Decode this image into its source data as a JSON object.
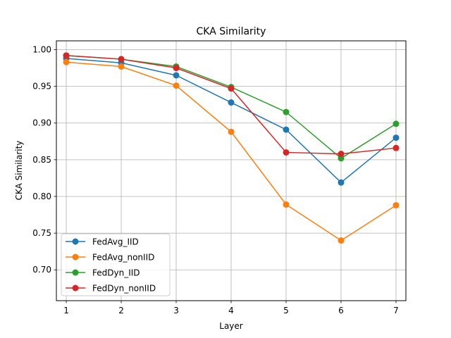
{
  "chart_data": {
    "type": "line",
    "title": "CKA Similarity",
    "xlabel": "Layer",
    "ylabel": "CKA Similarity",
    "x": [
      1,
      2,
      3,
      4,
      5,
      6,
      7
    ],
    "xlim": [
      0.82,
      7.18
    ],
    "ylim": [
      0.658,
      1.012
    ],
    "xticks": [
      "1",
      "2",
      "3",
      "4",
      "5",
      "6",
      "7"
    ],
    "yticks": [
      "0.70",
      "0.75",
      "0.80",
      "0.85",
      "0.90",
      "0.95",
      "1.00"
    ],
    "grid": true,
    "legend_position": "lower-left",
    "series": [
      {
        "name": "FedAvg_IID",
        "color": "#1f77b4",
        "values": [
          0.988,
          0.982,
          0.965,
          0.928,
          0.891,
          0.819,
          0.88
        ]
      },
      {
        "name": "FedAvg_nonIID",
        "color": "#ff7f0e",
        "values": [
          0.983,
          0.977,
          0.951,
          0.888,
          0.789,
          0.74,
          0.788
        ]
      },
      {
        "name": "FedDyn_IID",
        "color": "#2ca02c",
        "values": [
          0.992,
          0.987,
          0.977,
          0.949,
          0.915,
          0.852,
          0.899
        ]
      },
      {
        "name": "FedDyn_nonIID",
        "color": "#d62728",
        "values": [
          0.992,
          0.987,
          0.975,
          0.947,
          0.86,
          0.858,
          0.866
        ]
      }
    ]
  }
}
